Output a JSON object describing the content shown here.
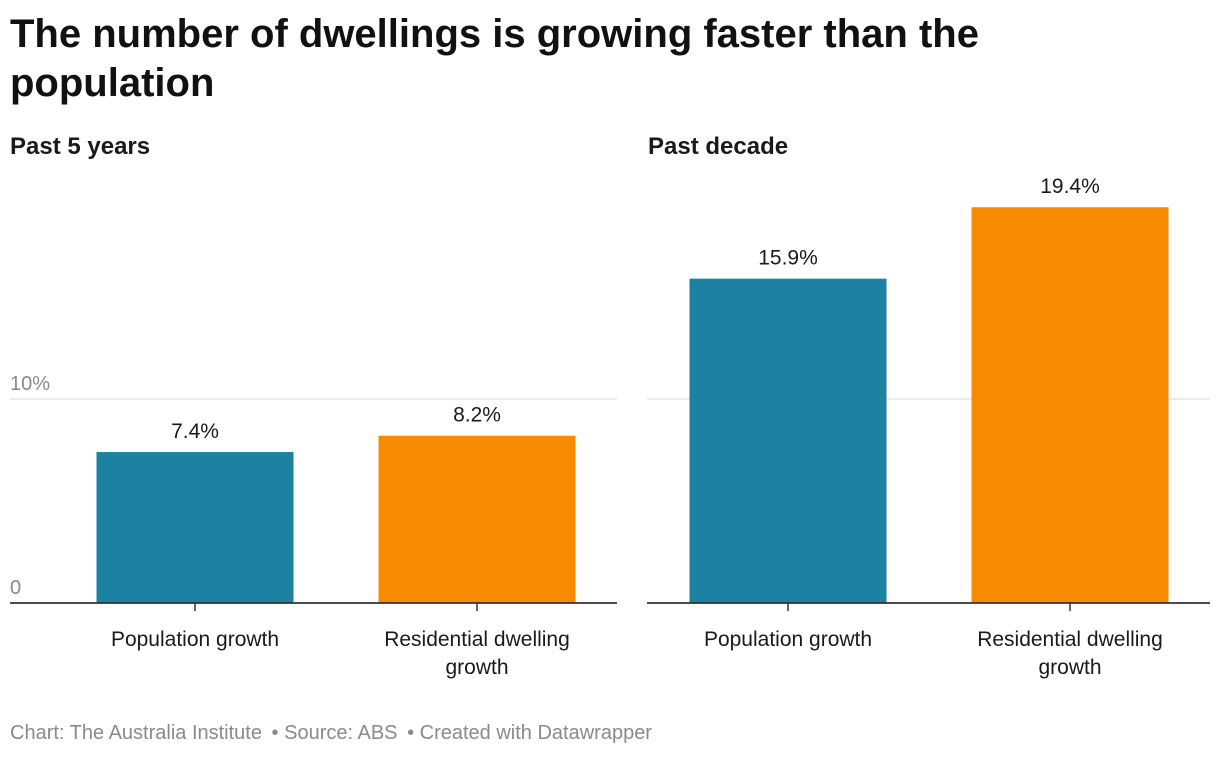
{
  "title": "The number of dwellings is growing faster than the population",
  "colors": {
    "population": "#1d81a2",
    "dwelling": "#f78b00",
    "grid": "#e0e0e0",
    "axis": "#333333"
  },
  "chart_data": [
    {
      "type": "bar",
      "title": "Past 5 years",
      "categories": [
        "Population growth",
        "Residential dwelling growth"
      ],
      "category_lines": [
        [
          "Population growth"
        ],
        [
          "Residential dwelling",
          "growth"
        ]
      ],
      "values": [
        7.4,
        8.2
      ],
      "value_labels": [
        "7.4%",
        "8.2%"
      ],
      "y_ticks": [
        0,
        10
      ],
      "y_tick_labels": [
        "0",
        "10%"
      ],
      "ylim": [
        0,
        20
      ],
      "grid": true
    },
    {
      "type": "bar",
      "title": "Past decade",
      "categories": [
        "Population growth",
        "Residential dwelling growth"
      ],
      "category_lines": [
        [
          "Population growth"
        ],
        [
          "Residential dwelling",
          "growth"
        ]
      ],
      "values": [
        15.9,
        19.4
      ],
      "value_labels": [
        "15.9%",
        "19.4%"
      ],
      "y_ticks": [
        0,
        10
      ],
      "y_tick_labels": [
        "",
        ""
      ],
      "ylim": [
        0,
        20
      ],
      "grid": true
    }
  ],
  "footer": {
    "chart_credit": "Chart: The Australia Institute",
    "source": "• Source: ABS",
    "created": "• Created with Datawrapper"
  }
}
